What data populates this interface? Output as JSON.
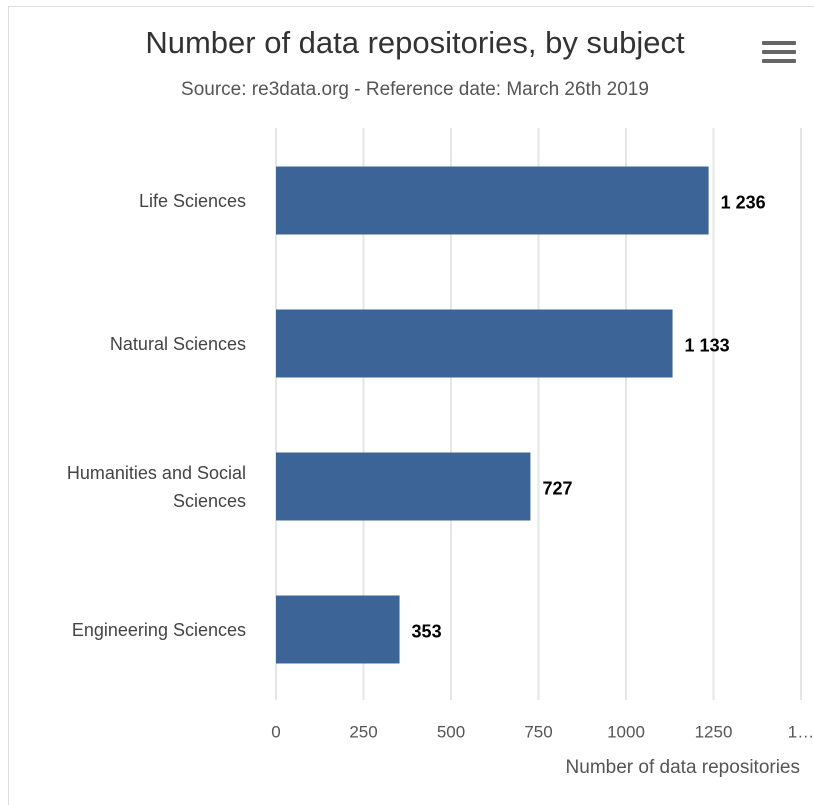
{
  "chart_data": {
    "type": "bar",
    "orientation": "horizontal",
    "title": "Number of data repositories, by subject",
    "subtitle": "Source: re3data.org - Reference date: March 26th 2019",
    "categories": [
      "Life Sciences",
      "Natural Sciences",
      "Humanities and Social Sciences",
      "Engineering Sciences"
    ],
    "values": [
      1236,
      1133,
      727,
      353
    ],
    "value_labels": [
      "1 236",
      "1 133",
      "727",
      "353"
    ],
    "color": "#3d6496",
    "xlabel": "Number of data repositories",
    "xlim": [
      0,
      1500
    ],
    "xticks": [
      0,
      250,
      500,
      750,
      1000,
      1250,
      {
        "value": 1500,
        "label": "1…"
      }
    ],
    "grid": true
  }
}
